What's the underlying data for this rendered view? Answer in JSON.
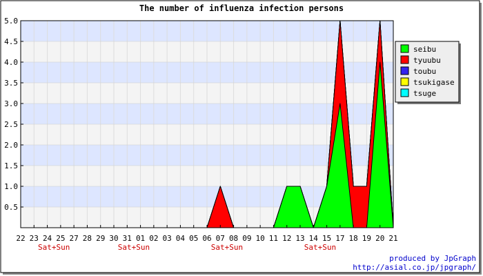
{
  "chart_data": {
    "type": "area",
    "title": "The number of influenza infection persons",
    "xlabel": "",
    "ylabel": "",
    "x": [
      "22",
      "23",
      "24",
      "25",
      "27",
      "28",
      "29",
      "30",
      "31",
      "01",
      "02",
      "03",
      "04",
      "05",
      "06",
      "07",
      "08",
      "09",
      "10",
      "11",
      "12",
      "13",
      "14",
      "15",
      "17",
      "18",
      "19",
      "20",
      "21"
    ],
    "ylim": [
      0,
      5
    ],
    "yticks": [
      "0.5",
      "1.0",
      "1.5",
      "2.0",
      "2.5",
      "3.0",
      "3.5",
      "4.0",
      "4.5",
      "5.0"
    ],
    "stacked": true,
    "series": [
      {
        "name": "seibu",
        "color": "#00ff00",
        "values": [
          0,
          0,
          0,
          0,
          0,
          0,
          0,
          0,
          0,
          0,
          0,
          0,
          0,
          0,
          0,
          0,
          0,
          0,
          0,
          0,
          1,
          1,
          0,
          1,
          3,
          0,
          0,
          4,
          0
        ]
      },
      {
        "name": "tyuubu",
        "color": "#ff0000",
        "values": [
          0,
          0,
          0,
          0,
          0,
          0,
          0,
          0,
          0,
          0,
          0,
          0,
          0,
          0,
          0,
          1,
          0,
          0,
          0,
          0,
          0,
          0,
          0,
          0,
          2,
          1,
          1,
          1,
          0
        ]
      },
      {
        "name": "toubu",
        "color": "#3322ee",
        "values": [
          0,
          0,
          0,
          0,
          0,
          0,
          0,
          0,
          0,
          0,
          0,
          0,
          0,
          0,
          0,
          0,
          0,
          0,
          0,
          0,
          0,
          0,
          0,
          0,
          0,
          0,
          0,
          0,
          0
        ]
      },
      {
        "name": "tsukigase",
        "color": "#ffff00",
        "values": [
          0,
          0,
          0,
          0,
          0,
          0,
          0,
          0,
          0,
          0,
          0,
          0,
          0,
          0,
          0,
          0,
          0,
          0,
          0,
          0,
          0,
          0,
          0,
          0,
          0,
          0,
          0,
          0,
          0
        ]
      },
      {
        "name": "tsuge",
        "color": "#00ffff",
        "values": [
          0,
          0,
          0,
          0,
          0,
          0,
          0,
          0,
          0,
          0,
          0,
          0,
          0,
          0,
          0,
          0,
          0,
          0,
          0,
          0,
          0,
          0,
          0,
          0,
          0,
          0,
          0,
          0,
          0
        ]
      }
    ],
    "annotations": [
      {
        "text": "Sat+Sun",
        "between": [
          "24",
          "25"
        ]
      },
      {
        "text": "Sat+Sun",
        "between": [
          "31",
          "01"
        ]
      },
      {
        "text": "Sat+Sun",
        "between": [
          "07",
          "08"
        ]
      },
      {
        "text": "Sat+Sun",
        "between": [
          "14",
          "15"
        ]
      }
    ],
    "legend_placement": "right",
    "grid": true,
    "band_colors": [
      "#dde6ff",
      "#f4f4f4"
    ],
    "annotation_color": "#cc0000",
    "credit_color": "#0000cc"
  },
  "credits": {
    "line1": "produced by JpGraph",
    "line2": "http://asial.co.jp/jpgraph/"
  }
}
